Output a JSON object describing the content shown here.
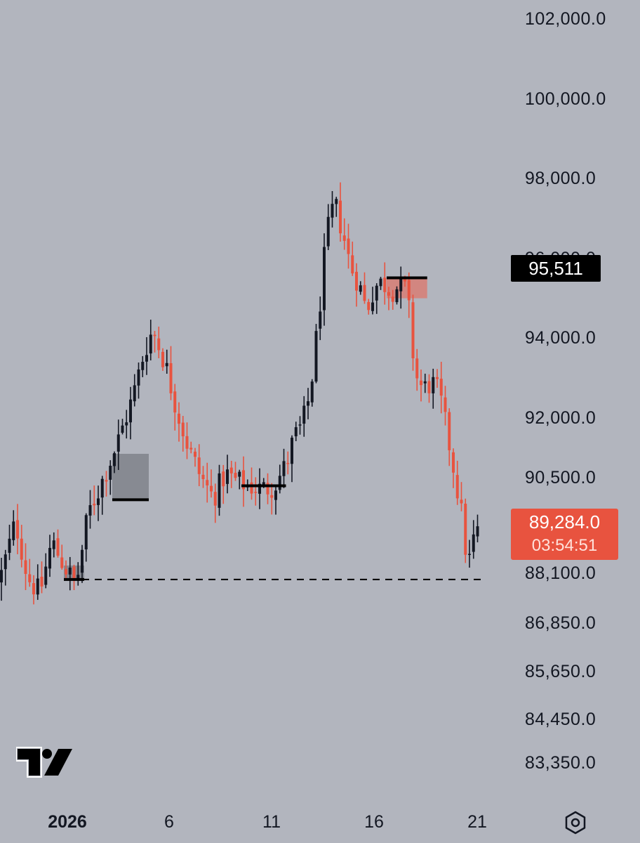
{
  "chart_data": {
    "type": "candlestick",
    "ylim": [
      83000,
      102300
    ],
    "y_ticks": [
      "102,000.0",
      "100,000.0",
      "98,000.0",
      "96,000.0",
      "94,000.0",
      "92,000.0",
      "90,500.0",
      "88,100.0",
      "86,850.0",
      "85,650.0",
      "84,450.0",
      "83,350.0"
    ],
    "x_ticks": [
      "2026",
      "6",
      "11",
      "16",
      "21"
    ],
    "current_price_label": "89,284.0",
    "countdown_label": "03:54:51",
    "marked_level_label": "95,511",
    "dashed_level": 87950,
    "colors": {
      "up": "#131722",
      "down": "#e8533f",
      "background": "#b2b5be",
      "price_badge": "#e8533f",
      "level_badge": "#000000"
    },
    "overview_path": [
      [
        0,
        87900
      ],
      [
        4,
        89400
      ],
      [
        7,
        88000
      ],
      [
        10,
        87600
      ],
      [
        13,
        88900
      ],
      [
        16,
        88300
      ],
      [
        19,
        87800
      ],
      [
        22,
        89600
      ],
      [
        25,
        90300
      ],
      [
        29,
        91300
      ],
      [
        33,
        92500
      ],
      [
        36,
        93700
      ],
      [
        38,
        94200
      ],
      [
        41,
        93400
      ],
      [
        44,
        92200
      ],
      [
        47,
        91200
      ],
      [
        50,
        90500
      ],
      [
        53,
        90000
      ],
      [
        56,
        90600
      ],
      [
        59,
        90400
      ],
      [
        62,
        90300
      ],
      [
        65,
        90200
      ],
      [
        68,
        90300
      ],
      [
        71,
        90800
      ],
      [
        73,
        91500
      ],
      [
        75,
        91800
      ],
      [
        77,
        92600
      ],
      [
        79,
        94400
      ],
      [
        81,
        96500
      ],
      [
        83,
        97400
      ],
      [
        85,
        96700
      ],
      [
        87,
        95800
      ],
      [
        89,
        95400
      ],
      [
        91,
        94700
      ],
      [
        93,
        95300
      ],
      [
        95,
        95400
      ],
      [
        97,
        95200
      ],
      [
        99,
        95300
      ],
      [
        101,
        95200
      ],
      [
        103,
        93100
      ],
      [
        105,
        92700
      ],
      [
        107,
        92900
      ],
      [
        109,
        92600
      ],
      [
        111,
        91600
      ],
      [
        113,
        90500
      ],
      [
        115,
        89300
      ],
      [
        116,
        88200
      ],
      [
        117,
        88700
      ],
      [
        118,
        89200
      ],
      [
        118.6,
        89284
      ]
    ],
    "zones": [
      {
        "type": "bullish",
        "from": 16,
        "to": 20,
        "low": 87950,
        "high": 88300,
        "level": 87950
      },
      {
        "type": "bullish",
        "from": 28,
        "to": 36,
        "low": 89950,
        "high": 91100,
        "level": 89950
      },
      {
        "type": "neutral",
        "from": 60,
        "to": 70,
        "low": 90250,
        "high": 90350,
        "level": 90300
      },
      {
        "type": "bearish",
        "from": 96,
        "to": 105,
        "low": 95000,
        "high": 95511,
        "level": 95511
      }
    ]
  }
}
